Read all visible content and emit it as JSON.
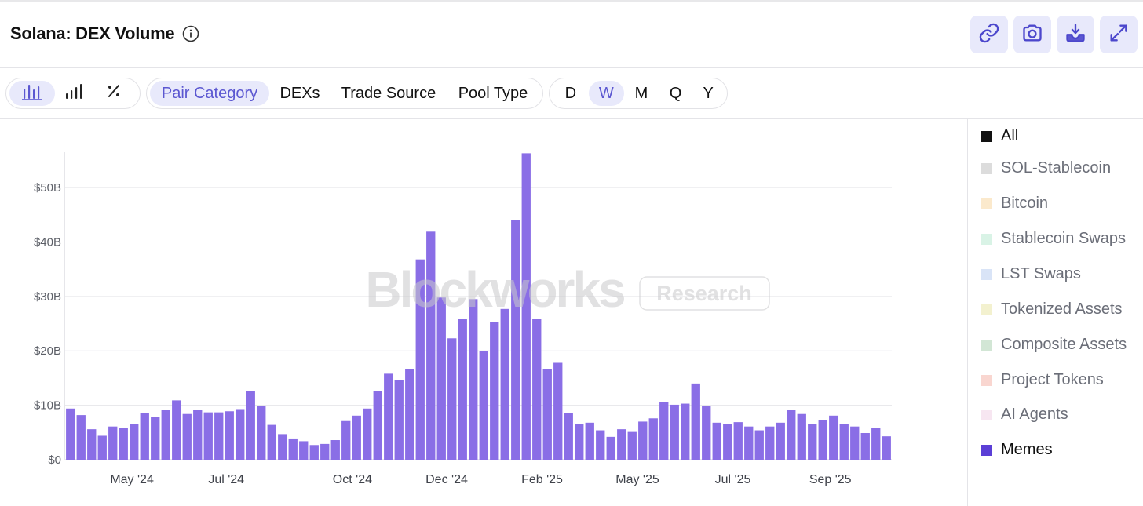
{
  "header": {
    "title": "Solana: DEX Volume",
    "actions": [
      {
        "icon": "link-icon"
      },
      {
        "icon": "camera-icon"
      },
      {
        "icon": "download-icon"
      },
      {
        "icon": "expand-icon"
      }
    ]
  },
  "toolbar": {
    "chart_types": [
      {
        "icon": "bar-chart-icon",
        "active": true
      },
      {
        "icon": "stacked-bar-icon",
        "active": false
      },
      {
        "icon": "percent-icon",
        "active": false
      }
    ],
    "breakdowns": [
      {
        "label": "Pair Category",
        "active": true
      },
      {
        "label": "DEXs",
        "active": false
      },
      {
        "label": "Trade Source",
        "active": false
      },
      {
        "label": "Pool Type",
        "active": false
      }
    ],
    "intervals": [
      {
        "label": "D",
        "active": false
      },
      {
        "label": "W",
        "active": true
      },
      {
        "label": "M",
        "active": false
      },
      {
        "label": "Q",
        "active": false
      },
      {
        "label": "Y",
        "active": false
      }
    ]
  },
  "watermark": {
    "brand": "Blockworks",
    "tag": "Research"
  },
  "legend": [
    {
      "label": "All",
      "color": "#111111",
      "active": true
    },
    {
      "label": "SOL-Stablecoin",
      "color": "#dcdcdc",
      "active": false
    },
    {
      "label": "Bitcoin",
      "color": "#fbe9cc",
      "active": false
    },
    {
      "label": "Stablecoin Swaps",
      "color": "#d9f3e6",
      "active": false
    },
    {
      "label": "LST Swaps",
      "color": "#d9e4f7",
      "active": false
    },
    {
      "label": "Tokenized Assets",
      "color": "#f3f1cf",
      "active": false
    },
    {
      "label": "Composite Assets",
      "color": "#d2e6d5",
      "active": false
    },
    {
      "label": "Project Tokens",
      "color": "#f9d6d0",
      "active": false
    },
    {
      "label": "AI Agents",
      "color": "#f7e6f1",
      "active": false
    },
    {
      "label": "Memes",
      "color": "#5b3fd6",
      "active": true
    }
  ],
  "chart_data": {
    "type": "bar",
    "series": [
      {
        "name": "Memes",
        "color": "#8a6ee6"
      }
    ],
    "ylim": [
      0,
      56.5
    ],
    "yticks": [
      0,
      10,
      20,
      30,
      40,
      50
    ],
    "ytick_labels": [
      "$0",
      "$10B",
      "$20B",
      "$30B",
      "$40B",
      "$50B"
    ],
    "xtick_labels": [
      {
        "label": "May '24",
        "index": 6.3
      },
      {
        "label": "Jul '24",
        "index": 15.2
      },
      {
        "label": "Oct '24",
        "index": 27.1
      },
      {
        "label": "Dec '24",
        "index": 36.0
      },
      {
        "label": "Feb '25",
        "index": 45.0
      },
      {
        "label": "May '25",
        "index": 54.0
      },
      {
        "label": "Jul '25",
        "index": 63.0
      },
      {
        "label": "Sep '25",
        "index": 72.2
      }
    ],
    "values": [
      9.4,
      8.2,
      5.6,
      4.4,
      6.1,
      5.9,
      6.6,
      8.6,
      7.9,
      9.1,
      10.9,
      8.4,
      9.2,
      8.7,
      8.7,
      8.9,
      9.3,
      12.6,
      9.9,
      6.4,
      4.7,
      3.9,
      3.4,
      2.7,
      2.9,
      3.6,
      7.1,
      8.1,
      9.4,
      12.6,
      15.8,
      14.6,
      16.6,
      36.8,
      41.9,
      29.8,
      22.3,
      25.8,
      29.5,
      20.0,
      25.3,
      27.7,
      44.0,
      56.3,
      25.8,
      16.6,
      17.8,
      8.6,
      6.6,
      6.8,
      5.4,
      4.2,
      5.6,
      5.1,
      7.0,
      7.6,
      10.6,
      10.1,
      10.3,
      14.0,
      9.8,
      6.8,
      6.6,
      6.9,
      6.1,
      5.4,
      6.1,
      6.8,
      9.1,
      8.4,
      6.6,
      7.3,
      8.1,
      6.6,
      6.1,
      4.9,
      5.8,
      4.3
    ]
  }
}
